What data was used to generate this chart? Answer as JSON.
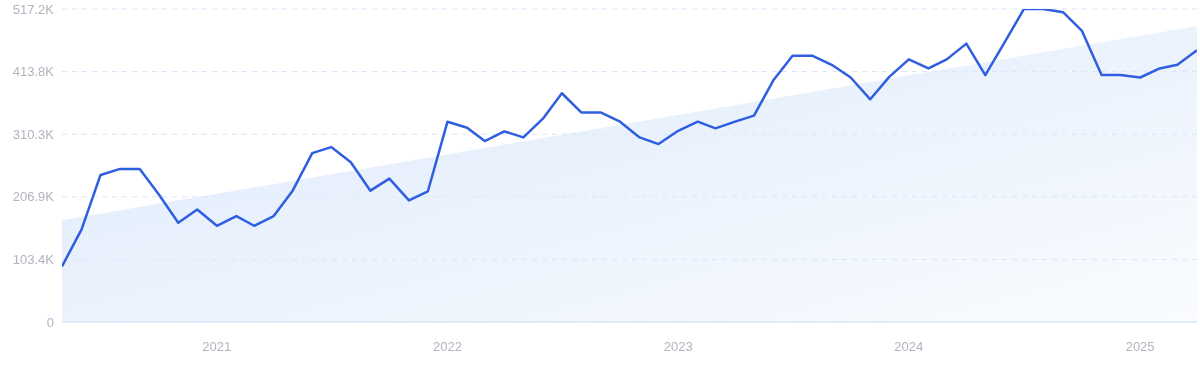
{
  "chart_data": {
    "type": "line",
    "x": [
      "2020-05",
      "2020-06",
      "2020-07",
      "2020-08",
      "2020-09",
      "2020-10",
      "2020-11",
      "2020-12",
      "2021-01",
      "2021-02",
      "2021-03",
      "2021-04",
      "2021-05",
      "2021-06",
      "2021-07",
      "2021-08",
      "2021-09",
      "2021-10",
      "2021-11",
      "2021-12",
      "2022-01",
      "2022-02",
      "2022-03",
      "2022-04",
      "2022-05",
      "2022-06",
      "2022-07",
      "2022-08",
      "2022-09",
      "2022-10",
      "2022-11",
      "2022-12",
      "2023-01",
      "2023-02",
      "2023-03",
      "2023-04",
      "2023-05",
      "2023-06",
      "2023-07",
      "2023-08",
      "2023-09",
      "2023-10",
      "2023-11",
      "2023-12",
      "2024-01",
      "2024-02",
      "2024-03",
      "2024-04",
      "2024-05",
      "2024-06",
      "2024-07",
      "2024-08",
      "2024-09",
      "2024-10",
      "2024-11",
      "2024-12",
      "2025-01",
      "2025-02",
      "2025-03",
      "2025-04"
    ],
    "series": [
      {
        "type": "area",
        "color": "#dce9fb",
        "x": [
          "2020-05",
          "2025-04"
        ],
        "values": [
          168,
          489
        ]
      },
      {
        "color": "#2f5fe0",
        "values": [
          92,
          153,
          243,
          253,
          253,
          211,
          164,
          186,
          159,
          175,
          159,
          175,
          217,
          279,
          289,
          264,
          217,
          237,
          201,
          216,
          331,
          321,
          299,
          315,
          305,
          336,
          378,
          346,
          346,
          331,
          305,
          294,
          316,
          331,
          320,
          331,
          341,
          400,
          440,
          440,
          425,
          404,
          368,
          405,
          434,
          419,
          434,
          460,
          408,
          463,
          517,
          517,
          512,
          481,
          408,
          408,
          404,
          419,
          425,
          449
        ]
      }
    ],
    "xlim": [
      "2020-05",
      "2025-04"
    ],
    "xticks": [
      {
        "value": "2021-01",
        "label": "2021"
      },
      {
        "value": "2022-01",
        "label": "2022"
      },
      {
        "value": "2023-01",
        "label": "2023"
      },
      {
        "value": "2024-01",
        "label": "2024"
      },
      {
        "value": "2025-01",
        "label": "2025"
      }
    ],
    "ylim": [
      0,
      517.2
    ],
    "yticks": [
      0,
      {
        "value": 103.4,
        "label": "103.4K"
      },
      {
        "value": 206.9,
        "label": "206.9K"
      },
      {
        "value": 310.3,
        "label": "310.3K"
      },
      {
        "value": 413.8,
        "label": "413.8K"
      },
      {
        "value": 517.2,
        "label": "517.2K"
      }
    ],
    "grid": "y"
  }
}
